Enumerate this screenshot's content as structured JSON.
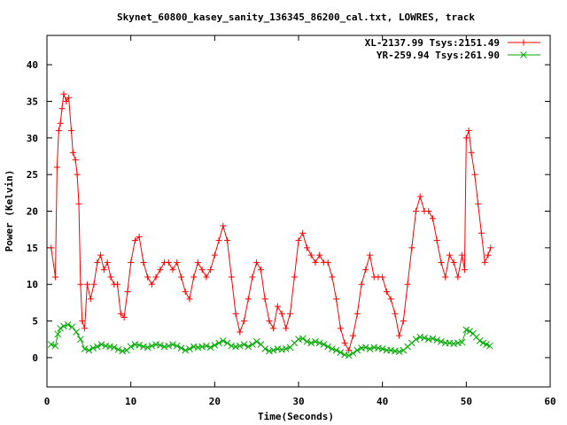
{
  "chart_data": {
    "type": "line",
    "title": "Skynet_60800_kasey_sanity_136345_86200_cal.txt, LOWRES, track",
    "xlabel": "Time(Seconds)",
    "ylabel": "Power (Kelvin)",
    "xlim": [
      0,
      60
    ],
    "ylim": [
      -4,
      44
    ],
    "x_ticks": [
      0,
      10,
      20,
      30,
      40,
      50,
      60
    ],
    "y_ticks": [
      0,
      5,
      10,
      15,
      20,
      25,
      30,
      35,
      40
    ],
    "legend_position": "top-right",
    "grid": false,
    "series": [
      {
        "name": "XL-2137.99 Tsys:2151.49",
        "color": "#ff0000",
        "marker": "plus",
        "points": [
          [
            0.5,
            15
          ],
          [
            1.0,
            11
          ],
          [
            1.2,
            26
          ],
          [
            1.4,
            31
          ],
          [
            1.6,
            32
          ],
          [
            1.8,
            34
          ],
          [
            2.0,
            36
          ],
          [
            2.3,
            35
          ],
          [
            2.6,
            35.5
          ],
          [
            2.9,
            31
          ],
          [
            3.1,
            28
          ],
          [
            3.4,
            27
          ],
          [
            3.6,
            25
          ],
          [
            3.8,
            21
          ],
          [
            4.0,
            10
          ],
          [
            4.2,
            5
          ],
          [
            4.5,
            4
          ],
          [
            4.8,
            10
          ],
          [
            5.2,
            8
          ],
          [
            5.6,
            10
          ],
          [
            6.0,
            13
          ],
          [
            6.4,
            14
          ],
          [
            6.8,
            12
          ],
          [
            7.2,
            13
          ],
          [
            7.6,
            11
          ],
          [
            8.0,
            10
          ],
          [
            8.4,
            10
          ],
          [
            8.8,
            6
          ],
          [
            9.2,
            5.5
          ],
          [
            9.6,
            9
          ],
          [
            10.0,
            13
          ],
          [
            10.5,
            16
          ],
          [
            11.0,
            16.5
          ],
          [
            11.5,
            13
          ],
          [
            12.0,
            11
          ],
          [
            12.5,
            10
          ],
          [
            13.0,
            11
          ],
          [
            13.5,
            12
          ],
          [
            14.0,
            13
          ],
          [
            14.5,
            13
          ],
          [
            15.0,
            12
          ],
          [
            15.5,
            13
          ],
          [
            16.0,
            11
          ],
          [
            16.5,
            9
          ],
          [
            17.0,
            8
          ],
          [
            17.5,
            11
          ],
          [
            18.0,
            13
          ],
          [
            18.5,
            12
          ],
          [
            19.0,
            11
          ],
          [
            19.5,
            12
          ],
          [
            20.0,
            14
          ],
          [
            20.5,
            16
          ],
          [
            21.0,
            18
          ],
          [
            21.5,
            16
          ],
          [
            22.0,
            11
          ],
          [
            22.5,
            6
          ],
          [
            23.0,
            3.5
          ],
          [
            23.5,
            5
          ],
          [
            24.0,
            8
          ],
          [
            24.5,
            11
          ],
          [
            25.0,
            13
          ],
          [
            25.5,
            12
          ],
          [
            26.0,
            8
          ],
          [
            26.5,
            5
          ],
          [
            27.0,
            4
          ],
          [
            27.5,
            7
          ],
          [
            28.0,
            6
          ],
          [
            28.5,
            4
          ],
          [
            29.0,
            6
          ],
          [
            29.5,
            11
          ],
          [
            30.0,
            16
          ],
          [
            30.5,
            17
          ],
          [
            31.0,
            15
          ],
          [
            31.5,
            14
          ],
          [
            32.0,
            13
          ],
          [
            32.5,
            14
          ],
          [
            33.0,
            13
          ],
          [
            33.5,
            13
          ],
          [
            34.0,
            11
          ],
          [
            34.5,
            8
          ],
          [
            35.0,
            4
          ],
          [
            35.5,
            2
          ],
          [
            36.0,
            1
          ],
          [
            36.5,
            3
          ],
          [
            37.0,
            6
          ],
          [
            37.5,
            10
          ],
          [
            38.0,
            12
          ],
          [
            38.5,
            14
          ],
          [
            39.0,
            11
          ],
          [
            39.5,
            11
          ],
          [
            40.0,
            11
          ],
          [
            40.5,
            9
          ],
          [
            41.0,
            8
          ],
          [
            41.5,
            6
          ],
          [
            42.0,
            3
          ],
          [
            42.5,
            5
          ],
          [
            43.0,
            10
          ],
          [
            43.5,
            15
          ],
          [
            44.0,
            20
          ],
          [
            44.5,
            22
          ],
          [
            45.0,
            20
          ],
          [
            45.5,
            20
          ],
          [
            46.0,
            19
          ],
          [
            46.5,
            16
          ],
          [
            47.0,
            13
          ],
          [
            47.5,
            11
          ],
          [
            48.0,
            14
          ],
          [
            48.5,
            13
          ],
          [
            49.0,
            11
          ],
          [
            49.5,
            14
          ],
          [
            49.8,
            12
          ],
          [
            50.0,
            30
          ],
          [
            50.3,
            31
          ],
          [
            50.6,
            28
          ],
          [
            51.0,
            25
          ],
          [
            51.4,
            21
          ],
          [
            51.8,
            17
          ],
          [
            52.2,
            13
          ],
          [
            52.6,
            14
          ],
          [
            52.9,
            15
          ]
        ]
      },
      {
        "name": "YR-259.94 Tsys:261.90",
        "color": "#00aa00",
        "marker": "cross",
        "points": [
          [
            0.5,
            1.8
          ],
          [
            1.0,
            1.6
          ],
          [
            1.3,
            3.2
          ],
          [
            1.6,
            4.0
          ],
          [
            2.0,
            4.3
          ],
          [
            2.5,
            4.5
          ],
          [
            3.0,
            4.2
          ],
          [
            3.5,
            3.5
          ],
          [
            4.0,
            2.5
          ],
          [
            4.5,
            1.2
          ],
          [
            5.0,
            1.0
          ],
          [
            5.5,
            1.3
          ],
          [
            6.0,
            1.5
          ],
          [
            6.5,
            1.8
          ],
          [
            7.0,
            1.6
          ],
          [
            7.5,
            1.5
          ],
          [
            8.0,
            1.4
          ],
          [
            8.5,
            1.1
          ],
          [
            9.0,
            0.9
          ],
          [
            9.5,
            1.0
          ],
          [
            10.0,
            1.5
          ],
          [
            10.5,
            1.8
          ],
          [
            11.0,
            1.7
          ],
          [
            11.5,
            1.5
          ],
          [
            12.0,
            1.4
          ],
          [
            12.5,
            1.6
          ],
          [
            13.0,
            1.8
          ],
          [
            13.5,
            1.7
          ],
          [
            14.0,
            1.5
          ],
          [
            14.5,
            1.6
          ],
          [
            15.0,
            1.8
          ],
          [
            15.5,
            1.6
          ],
          [
            16.0,
            1.3
          ],
          [
            16.5,
            1.0
          ],
          [
            17.0,
            1.2
          ],
          [
            17.5,
            1.5
          ],
          [
            18.0,
            1.4
          ],
          [
            18.5,
            1.5
          ],
          [
            19.0,
            1.6
          ],
          [
            19.5,
            1.4
          ],
          [
            20.0,
            1.7
          ],
          [
            20.5,
            2.0
          ],
          [
            21.0,
            2.3
          ],
          [
            21.5,
            2.0
          ],
          [
            22.0,
            1.6
          ],
          [
            22.5,
            1.5
          ],
          [
            23.0,
            1.6
          ],
          [
            23.5,
            1.8
          ],
          [
            24.0,
            1.5
          ],
          [
            24.5,
            1.8
          ],
          [
            25.0,
            2.2
          ],
          [
            25.5,
            1.8
          ],
          [
            26.0,
            1.2
          ],
          [
            26.5,
            0.9
          ],
          [
            27.0,
            1.0
          ],
          [
            27.5,
            1.2
          ],
          [
            28.0,
            1.1
          ],
          [
            28.5,
            1.2
          ],
          [
            29.0,
            1.4
          ],
          [
            29.5,
            2.0
          ],
          [
            30.0,
            2.5
          ],
          [
            30.5,
            2.6
          ],
          [
            31.0,
            2.2
          ],
          [
            31.5,
            2.0
          ],
          [
            32.0,
            2.2
          ],
          [
            32.5,
            2.0
          ],
          [
            33.0,
            1.8
          ],
          [
            33.5,
            1.5
          ],
          [
            34.0,
            1.2
          ],
          [
            34.5,
            1.0
          ],
          [
            35.0,
            0.7
          ],
          [
            35.5,
            0.4
          ],
          [
            36.0,
            0.3
          ],
          [
            36.5,
            0.6
          ],
          [
            37.0,
            1.0
          ],
          [
            37.5,
            1.3
          ],
          [
            38.0,
            1.4
          ],
          [
            38.5,
            1.2
          ],
          [
            39.0,
            1.4
          ],
          [
            39.5,
            1.3
          ],
          [
            40.0,
            1.2
          ],
          [
            40.5,
            1.0
          ],
          [
            41.0,
            1.0
          ],
          [
            41.5,
            0.9
          ],
          [
            42.0,
            0.8
          ],
          [
            42.5,
            1.0
          ],
          [
            43.0,
            1.5
          ],
          [
            43.5,
            2.0
          ],
          [
            44.0,
            2.5
          ],
          [
            44.5,
            2.8
          ],
          [
            45.0,
            2.7
          ],
          [
            45.5,
            2.5
          ],
          [
            46.0,
            2.6
          ],
          [
            46.5,
            2.4
          ],
          [
            47.0,
            2.2
          ],
          [
            47.5,
            2.0
          ],
          [
            48.0,
            2.0
          ],
          [
            48.5,
            1.9
          ],
          [
            49.0,
            2.0
          ],
          [
            49.5,
            2.1
          ],
          [
            50.0,
            3.8
          ],
          [
            50.4,
            3.6
          ],
          [
            50.8,
            3.3
          ],
          [
            51.2,
            2.8
          ],
          [
            51.6,
            2.3
          ],
          [
            52.0,
            2.0
          ],
          [
            52.4,
            1.8
          ],
          [
            52.8,
            1.6
          ]
        ]
      }
    ]
  }
}
